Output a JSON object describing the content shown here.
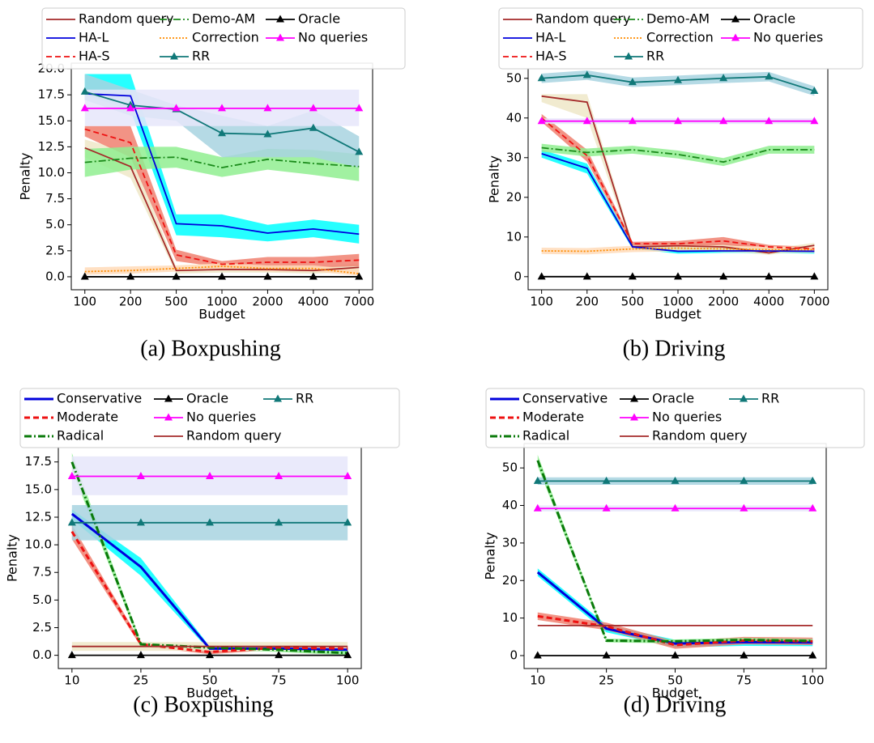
{
  "chart_data": [
    {
      "type": "line",
      "caption": "(a) Boxpushing",
      "xlabel": "Budget",
      "ylabel": "Penalty",
      "categories": [
        "100",
        "200",
        "500",
        "1000",
        "2000",
        "4000",
        "7000"
      ],
      "ylim": [
        -1.25,
        20.55
      ],
      "yticks": [
        {
          "value": 0,
          "label": "0.0"
        },
        2.5,
        {
          "value": 5,
          "label": "5.0"
        },
        7.5,
        {
          "value": 10,
          "label": "10.0"
        },
        12.5,
        {
          "value": 15,
          "label": "15.0"
        },
        17.5,
        {
          "value": 20,
          "label": "20.0"
        }
      ],
      "series": [
        {
          "name": "Random query",
          "color": "#a52a2a",
          "linestyle": "solid",
          "values": [
            12.4,
            10.6,
            0.6,
            0.7,
            0.7,
            0.6,
            0.9
          ],
          "band_color": "#eee8c8",
          "lower": [
            11.5,
            9.5,
            0.3,
            0.4,
            0.4,
            0.3,
            0.5
          ],
          "upper": [
            13.2,
            12.0,
            0.9,
            1.0,
            1.0,
            0.9,
            1.3
          ]
        },
        {
          "name": "HA-L",
          "color": "#0000dd",
          "linestyle": "solid",
          "values": [
            17.6,
            17.4,
            5.1,
            4.9,
            4.2,
            4.6,
            4.1
          ],
          "band_color": "#00ffff",
          "lower": [
            17.5,
            16.0,
            4.0,
            3.8,
            3.4,
            3.8,
            3.2
          ],
          "upper": [
            19.5,
            19.5,
            6.0,
            6.0,
            5.0,
            5.5,
            5.0
          ]
        },
        {
          "name": "HA-S",
          "color": "#ee1111",
          "linestyle": "dashed",
          "values": [
            14.2,
            12.9,
            2.1,
            1.2,
            1.4,
            1.4,
            1.6
          ],
          "band_color": "#f08070",
          "lower": [
            13.5,
            11.5,
            1.5,
            0.9,
            0.9,
            0.9,
            1.0
          ],
          "upper": [
            14.5,
            14.5,
            2.6,
            1.5,
            1.9,
            1.9,
            2.2
          ]
        },
        {
          "name": "Demo-AM",
          "color": "#1a8a1a",
          "linestyle": "dashdot",
          "values": [
            11.0,
            11.4,
            11.5,
            10.5,
            11.3,
            10.9,
            10.6
          ],
          "band_color": "#90ee90",
          "lower": [
            9.6,
            10.3,
            10.5,
            9.6,
            10.3,
            9.8,
            9.2
          ],
          "upper": [
            12.3,
            12.5,
            12.5,
            11.5,
            12.3,
            12.2,
            11.8
          ]
        },
        {
          "name": "Correction",
          "color": "#ff8c00",
          "linestyle": "dotted",
          "values": [
            0.5,
            0.6,
            0.8,
            1.0,
            0.8,
            0.8,
            0.3
          ],
          "band_color": "#ffdab9",
          "lower": [
            0.2,
            0.3,
            0.5,
            0.7,
            0.5,
            0.5,
            0.1
          ],
          "upper": [
            0.9,
            1.0,
            1.1,
            1.3,
            1.1,
            1.1,
            0.7
          ]
        },
        {
          "name": "RR",
          "color": "#107878",
          "linestyle": "solid",
          "marker": "^",
          "values": [
            17.8,
            16.5,
            16.1,
            13.8,
            13.7,
            14.3,
            12.0
          ],
          "band_color": "#a8d4e0",
          "lower": [
            17.0,
            15.5,
            15.0,
            11.5,
            11.5,
            11.5,
            10.5
          ],
          "upper": [
            19.5,
            18.0,
            16.5,
            15.5,
            14.5,
            16.0,
            13.5
          ]
        },
        {
          "name": "Oracle",
          "color": "#000000",
          "linestyle": "solid",
          "marker": "^",
          "values": [
            0,
            0,
            0,
            0,
            0,
            0,
            0
          ]
        },
        {
          "name": "No queries",
          "color": "#ff00ff",
          "linestyle": "solid",
          "marker": "^",
          "values": [
            16.2,
            16.2,
            16.2,
            16.2,
            16.2,
            16.2,
            16.2
          ],
          "band_color": "#e6e6fa",
          "lower": [
            14.5,
            14.5,
            14.5,
            14.5,
            14.5,
            14.5,
            14.5
          ],
          "upper": [
            18.0,
            18.0,
            18.0,
            18.0,
            18.0,
            18.0,
            18.0
          ]
        }
      ]
    },
    {
      "type": "line",
      "caption": "(b) Driving",
      "xlabel": "Budget",
      "ylabel": "Penalty",
      "categories": [
        "100",
        "200",
        "500",
        "1000",
        "2000",
        "4000",
        "7000"
      ],
      "ylim": [
        -3.3,
        52.4
      ],
      "yticks": [
        0,
        10,
        20,
        30,
        40,
        50
      ],
      "series": [
        {
          "name": "Random query",
          "color": "#a52a2a",
          "linestyle": "solid",
          "values": [
            45.5,
            44.0,
            7.5,
            7.8,
            7.5,
            6.0,
            7.9
          ],
          "band_color": "#eee8c8",
          "lower": [
            44.0,
            40.0,
            7.0,
            7.0,
            6.5,
            5.5,
            7.0
          ],
          "upper": [
            46.0,
            46.0,
            8.5,
            8.5,
            8.5,
            7.0,
            8.5
          ]
        },
        {
          "name": "HA-L",
          "color": "#0000dd",
          "linestyle": "solid",
          "values": [
            31.0,
            27.3,
            7.5,
            6.4,
            6.5,
            6.5,
            6.4
          ],
          "band_color": "#00ffff",
          "lower": [
            30.0,
            26.0,
            7.0,
            5.8,
            6.0,
            6.0,
            5.8
          ],
          "upper": [
            32.0,
            28.5,
            8.0,
            7.5,
            7.2,
            7.0,
            7.0
          ]
        },
        {
          "name": "HA-S",
          "color": "#ee1111",
          "linestyle": "dashed",
          "values": [
            40.0,
            30.5,
            8.3,
            8.3,
            9.0,
            7.5,
            7.0
          ],
          "band_color": "#f08070",
          "lower": [
            39.0,
            29.0,
            7.8,
            7.5,
            8.0,
            7.0,
            6.5
          ],
          "upper": [
            41.0,
            32.0,
            8.8,
            9.0,
            10.0,
            8.0,
            7.5
          ]
        },
        {
          "name": "Demo-AM",
          "color": "#1a8a1a",
          "linestyle": "dashdot",
          "values": [
            32.5,
            31.3,
            32.0,
            30.8,
            28.9,
            32.0,
            32.0
          ],
          "band_color": "#90ee90",
          "lower": [
            31.5,
            30.3,
            31.0,
            29.8,
            27.9,
            31.0,
            31.0
          ],
          "upper": [
            33.5,
            32.3,
            33.0,
            31.8,
            29.9,
            33.0,
            33.0
          ]
        },
        {
          "name": "Correction",
          "color": "#ff8c00",
          "linestyle": "dotted",
          "values": [
            6.5,
            6.4,
            7.0,
            7.2,
            7.0,
            6.8,
            6.8
          ],
          "band_color": "#ffdab9",
          "lower": [
            5.7,
            5.6,
            6.2,
            6.4,
            6.2,
            6.0,
            6.0
          ],
          "upper": [
            7.3,
            7.2,
            7.8,
            8.0,
            7.8,
            7.6,
            7.6
          ]
        },
        {
          "name": "RR",
          "color": "#107878",
          "linestyle": "solid",
          "marker": "^",
          "values": [
            50.0,
            50.8,
            49.0,
            49.5,
            50.0,
            50.4,
            46.8
          ],
          "band_color": "#a8d4e0",
          "lower": [
            48.8,
            49.6,
            47.8,
            48.3,
            48.8,
            49.2,
            45.6
          ],
          "upper": [
            51.2,
            52.0,
            50.2,
            50.7,
            51.2,
            51.6,
            48.0
          ]
        },
        {
          "name": "Oracle",
          "color": "#000000",
          "linestyle": "solid",
          "marker": "^",
          "values": [
            0,
            0,
            0,
            0,
            0,
            0,
            0
          ]
        },
        {
          "name": "No queries",
          "color": "#ff00ff",
          "linestyle": "solid",
          "marker": "^",
          "values": [
            39.2,
            39.2,
            39.2,
            39.2,
            39.2,
            39.2,
            39.2
          ],
          "band_color": "#e6e6fa",
          "lower": [
            38.5,
            38.5,
            38.5,
            38.5,
            38.5,
            38.5,
            38.5
          ],
          "upper": [
            39.9,
            39.9,
            39.9,
            39.9,
            39.9,
            39.9,
            39.9
          ]
        }
      ]
    },
    {
      "type": "line",
      "caption": "(c) Boxpushing",
      "xlabel": "Budget",
      "ylabel": "Penalty",
      "categories": [
        "10",
        "25",
        "50",
        "75",
        "100"
      ],
      "ylim": [
        -1.2,
        18.8
      ],
      "yticks": [
        {
          "value": 0,
          "label": "0.0"
        },
        2.5,
        {
          "value": 5,
          "label": "5.0"
        },
        7.5,
        {
          "value": 10,
          "label": "10.0"
        },
        12.5,
        {
          "value": 15,
          "label": "15.0"
        },
        17.5
      ],
      "series": [
        {
          "name": "Conservative",
          "color": "#0000dd",
          "linestyle": "solid",
          "linewidth": 3,
          "values": [
            12.8,
            8.0,
            0.6,
            0.6,
            0.5
          ],
          "band_color": "#00ffff",
          "lower": [
            12.3,
            7.2,
            0.4,
            0.4,
            0.3
          ],
          "upper": [
            13.2,
            8.8,
            0.8,
            0.8,
            0.7
          ]
        },
        {
          "name": "Moderate",
          "color": "#ee1111",
          "linestyle": "dashed",
          "linewidth": 3,
          "values": [
            11.2,
            1.0,
            0.3,
            0.7,
            0.6
          ],
          "band_color": "#f08070",
          "lower": [
            10.5,
            0.8,
            0.1,
            0.5,
            0.4
          ],
          "upper": [
            11.8,
            1.2,
            0.5,
            0.9,
            0.8
          ]
        },
        {
          "name": "Radical",
          "color": "#0a7a0a",
          "linestyle": "dashdot",
          "linewidth": 3,
          "values": [
            17.5,
            1.0,
            0.7,
            0.5,
            0.2
          ],
          "band_color": "#90ee90",
          "lower": [
            16.8,
            0.8,
            0.5,
            0.3,
            0.0
          ],
          "upper": [
            18.3,
            1.2,
            0.9,
            0.7,
            0.4
          ]
        },
        {
          "name": "Oracle",
          "color": "#000000",
          "linestyle": "solid",
          "marker": "^",
          "values": [
            0,
            0,
            0,
            0,
            0
          ]
        },
        {
          "name": "No queries",
          "color": "#ff00ff",
          "linestyle": "solid",
          "marker": "^",
          "values": [
            16.2,
            16.2,
            16.2,
            16.2,
            16.2
          ],
          "band_color": "#e6e6fa",
          "lower": [
            14.5,
            14.5,
            14.5,
            14.5,
            14.5
          ],
          "upper": [
            18.0,
            18.0,
            18.0,
            18.0,
            18.0
          ]
        },
        {
          "name": "Random query",
          "color": "#a52a2a",
          "linestyle": "solid",
          "values": [
            0.8,
            0.8,
            0.8,
            0.8,
            0.8
          ],
          "band_color": "#eee8c8",
          "lower": [
            0.4,
            0.4,
            0.4,
            0.4,
            0.4
          ],
          "upper": [
            1.2,
            1.2,
            1.2,
            1.2,
            1.2
          ]
        },
        {
          "name": "RR",
          "color": "#107878",
          "linestyle": "solid",
          "marker": "^",
          "values": [
            12.0,
            12.0,
            12.0,
            12.0,
            12.0
          ],
          "band_color": "#a8d4e0",
          "lower": [
            10.4,
            10.4,
            10.4,
            10.4,
            10.4
          ],
          "upper": [
            13.6,
            13.6,
            13.6,
            13.6,
            13.6
          ]
        }
      ]
    },
    {
      "type": "line",
      "caption": "(d) Driving",
      "xlabel": "Budget",
      "ylabel": "Penalty",
      "categories": [
        "10",
        "25",
        "50",
        "75",
        "100"
      ],
      "ylim": [
        -3.45,
        56.5
      ],
      "yticks": [
        0,
        10,
        20,
        30,
        40,
        50
      ],
      "series": [
        {
          "name": "Conservative",
          "color": "#0000dd",
          "linestyle": "solid",
          "linewidth": 3,
          "values": [
            22.2,
            7.2,
            3.2,
            3.6,
            3.5
          ],
          "band_color": "#00ffff",
          "lower": [
            21.2,
            6.2,
            2.2,
            2.6,
            2.5
          ],
          "upper": [
            23.2,
            8.2,
            4.2,
            4.6,
            4.5
          ]
        },
        {
          "name": "Moderate",
          "color": "#ee1111",
          "linestyle": "dashed",
          "linewidth": 3,
          "values": [
            10.5,
            7.8,
            2.8,
            4.0,
            3.8
          ],
          "band_color": "#f08070",
          "lower": [
            9.5,
            6.8,
            1.8,
            3.0,
            2.8
          ],
          "upper": [
            11.5,
            8.8,
            3.8,
            5.0,
            4.8
          ]
        },
        {
          "name": "Radical",
          "color": "#0a7a0a",
          "linestyle": "dashdot",
          "linewidth": 3,
          "values": [
            52.0,
            4.0,
            3.8,
            4.2,
            3.9
          ],
          "band_color": "#90ee90",
          "lower": [
            50.5,
            3.5,
            3.3,
            3.7,
            3.4
          ],
          "upper": [
            53.5,
            4.5,
            4.3,
            4.7,
            4.4
          ]
        },
        {
          "name": "Oracle",
          "color": "#000000",
          "linestyle": "solid",
          "marker": "^",
          "values": [
            0,
            0,
            0,
            0,
            0
          ]
        },
        {
          "name": "No queries",
          "color": "#ff00ff",
          "linestyle": "solid",
          "marker": "^",
          "values": [
            39.2,
            39.2,
            39.2,
            39.2,
            39.2
          ],
          "band_color": "#e6e6fa",
          "lower": [
            38.4,
            38.4,
            38.4,
            38.4,
            38.4
          ],
          "upper": [
            40.0,
            40.0,
            40.0,
            40.0,
            40.0
          ]
        },
        {
          "name": "Random query",
          "color": "#a52a2a",
          "linestyle": "solid",
          "values": [
            8.0,
            8.0,
            8.0,
            8.0,
            8.0
          ]
        },
        {
          "name": "RR",
          "color": "#107878",
          "linestyle": "solid",
          "marker": "^",
          "values": [
            46.5,
            46.5,
            46.5,
            46.5,
            46.5
          ],
          "band_color": "#a8d4e0",
          "lower": [
            45.5,
            45.5,
            45.5,
            45.5,
            45.5
          ],
          "upper": [
            47.5,
            47.5,
            47.5,
            47.5,
            47.5
          ]
        }
      ]
    }
  ]
}
